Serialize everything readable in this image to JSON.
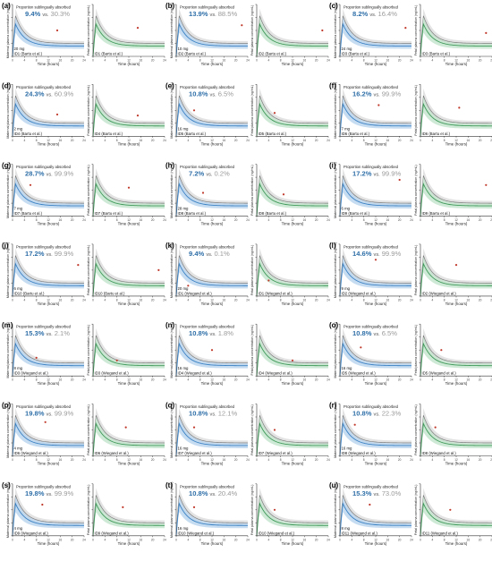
{
  "figure": {
    "colors": {
      "maternal": "#3b82c4",
      "maternal_band": "#bcd6ee",
      "fetal": "#3f9a5a",
      "fetal_band": "#c6e5cf",
      "comparison": "#7a7a7a",
      "comparison_band": "#e3e3e3",
      "observed_point": "#c0392b",
      "pct_primary": "#2f6fa8",
      "pct_secondary": "#9a9a9a"
    },
    "common": {
      "prop_label": "Proportion sublingually absorbed",
      "vs": "vs.",
      "xlabel": "Time (hours)",
      "ylabel_maternal": "Maternal plasma concentration (ng/mL)",
      "ylabel_fetal": "Fetal plasma concentration (ng/mL)"
    }
  },
  "chart_data": [
    {
      "type": "line",
      "panel": "(a)",
      "dose": "20 mg",
      "id": "ID1 (Bartu et al.)",
      "pct1": "9.4%",
      "pct2": "30.3%",
      "x_range": [
        0,
        24
      ],
      "curves": [
        "maternal",
        "fetal"
      ],
      "observed": {
        "maternal": [
          [
            15,
            0.5
          ]
        ],
        "fetal": [
          [
            15,
            0.55
          ]
        ]
      }
    },
    {
      "type": "line",
      "panel": "(b)",
      "dose": "10 mg",
      "id": "ID2 (Bartu et al.)",
      "pct1": "13.9%",
      "pct2": "88.5%",
      "x_range": [
        0,
        24
      ],
      "curves": [
        "maternal",
        "fetal"
      ],
      "observed": {
        "maternal": [
          [
            22,
            0.6
          ]
        ],
        "fetal": [
          [
            22,
            0.5
          ]
        ]
      }
    },
    {
      "type": "line",
      "panel": "(c)",
      "dose": "24 mg",
      "id": "ID3 (Bartu et al.)",
      "pct1": "8.2%",
      "pct2": "16.4%",
      "x_range": [
        0,
        24
      ],
      "curves": [
        "maternal",
        "fetal"
      ],
      "observed": {
        "maternal": [
          [
            22,
            0.55
          ]
        ],
        "fetal": [
          [
            22,
            0.45
          ]
        ]
      }
    },
    {
      "type": "line",
      "panel": "(d)",
      "dose": "2 mg",
      "id": "ID4 (Bartu et al.)",
      "pct1": "24.3%",
      "pct2": "60.9%",
      "x_range": [
        0,
        24
      ],
      "curves": [
        "maternal",
        "fetal"
      ],
      "observed": {
        "maternal": [
          [
            15,
            0.42
          ]
        ],
        "fetal": [
          [
            15,
            0.4
          ]
        ]
      }
    },
    {
      "type": "line",
      "panel": "(e)",
      "dose": "16 mg",
      "id": "ID5 (Bartu et al.)",
      "pct1": "10.8%",
      "pct2": "6.5%",
      "x_range": [
        0,
        24
      ],
      "curves": [
        "maternal",
        "fetal"
      ],
      "observed": {
        "maternal": [
          [
            6,
            0.5
          ]
        ],
        "fetal": [
          [
            6,
            0.45
          ]
        ]
      }
    },
    {
      "type": "line",
      "panel": "(f)",
      "dose": "7 mg",
      "id": "ID6 (Bartu et al.)",
      "pct1": "16.2%",
      "pct2": "99.9%",
      "x_range": [
        0,
        24
      ],
      "curves": [
        "maternal",
        "fetal"
      ],
      "observed": {
        "maternal": [
          [
            13,
            0.6
          ]
        ],
        "fetal": [
          [
            13,
            0.55
          ]
        ]
      }
    },
    {
      "type": "line",
      "panel": "(g)",
      "dose": "7 mg",
      "id": "ID7 (Bartu et al.)",
      "pct1": "28.7%",
      "pct2": "99.9%",
      "x_range": [
        0,
        24
      ],
      "curves": [
        "maternal",
        "fetal"
      ],
      "observed": {
        "maternal": [
          [
            6,
            0.6
          ]
        ],
        "fetal": [
          [
            12,
            0.55
          ]
        ]
      }
    },
    {
      "type": "line",
      "panel": "(h)",
      "dose": "28 mg",
      "id": "ID8 (Bartu et al.)",
      "pct1": "7.2%",
      "pct2": "0.2%",
      "x_range": [
        0,
        24
      ],
      "curves": [
        "maternal",
        "fetal"
      ],
      "observed": {
        "maternal": [
          [
            9,
            0.45
          ]
        ],
        "fetal": [
          [
            9,
            0.42
          ]
        ]
      }
    },
    {
      "type": "line",
      "panel": "(i)",
      "dose": "6 mg",
      "id": "ID9 (Bartu et al.)",
      "pct1": "17.2%",
      "pct2": "99.9%",
      "x_range": [
        0,
        24
      ],
      "curves": [
        "maternal",
        "fetal"
      ],
      "observed": {
        "maternal": [
          [
            20,
            0.7
          ]
        ],
        "fetal": [
          [
            22,
            0.6
          ]
        ]
      }
    },
    {
      "type": "line",
      "panel": "(j)",
      "dose": "6 mg",
      "id": "ID10 (Bartu et al.)",
      "pct1": "17.2%",
      "pct2": "99.9%",
      "x_range": [
        0,
        24
      ],
      "curves": [
        "maternal",
        "fetal"
      ],
      "observed": {
        "maternal": [
          [
            22,
            0.6
          ]
        ],
        "fetal": [
          [
            22,
            0.5
          ]
        ]
      }
    },
    {
      "type": "line",
      "panel": "(k)",
      "dose": "20 mg",
      "id": "ID1 (Wiegand et al.)",
      "pct1": "9.4%",
      "pct2": "0.1%",
      "x_range": [
        0,
        24
      ],
      "curves": [
        "maternal",
        "fetal"
      ],
      "observed": {
        "maternal": [
          [
            4,
            0.2
          ]
        ],
        "fetal": [
          [
            4,
            0.3
          ]
        ]
      }
    },
    {
      "type": "line",
      "panel": "(l)",
      "dose": "9 mg",
      "id": "ID2 (Wiegand et al.)",
      "pct1": "14.6%",
      "pct2": "99.9%",
      "x_range": [
        0,
        24
      ],
      "curves": [
        "maternal",
        "fetal"
      ],
      "observed": {
        "maternal": [
          [
            12,
            0.7
          ]
        ],
        "fetal": [
          [
            12,
            0.6
          ]
        ]
      }
    },
    {
      "type": "line",
      "panel": "(m)",
      "dose": "8 mg",
      "id": "ID3 (Wiegand et al.)",
      "pct1": "15.3%",
      "pct2": "2.1%",
      "x_range": [
        0,
        24
      ],
      "curves": [
        "maternal",
        "fetal"
      ],
      "observed": {
        "maternal": [
          [
            8,
            0.35
          ]
        ],
        "fetal": [
          [
            8,
            0.3
          ]
        ]
      }
    },
    {
      "type": "line",
      "panel": "(n)",
      "dose": "16 mg",
      "id": "ID4 (Wiegand et al.)",
      "pct1": "10.8%",
      "pct2": "1.8%",
      "x_range": [
        0,
        24
      ],
      "curves": [
        "maternal",
        "fetal"
      ],
      "observed": {
        "maternal": [
          [
            12,
            0.5
          ]
        ],
        "fetal": [
          [
            12,
            0.3
          ]
        ]
      }
    },
    {
      "type": "line",
      "panel": "(o)",
      "dose": "16 mg",
      "id": "ID5 (Wiegand et al.)",
      "pct1": "10.8%",
      "pct2": "6.5%",
      "x_range": [
        0,
        24
      ],
      "curves": [
        "maternal",
        "fetal"
      ],
      "observed": {
        "maternal": [
          [
            7,
            0.55
          ]
        ],
        "fetal": [
          [
            7,
            0.5
          ]
        ]
      }
    },
    {
      "type": "line",
      "panel": "(p)",
      "dose": "4 mg",
      "id": "ID6 (Wiegand et al.)",
      "pct1": "19.8%",
      "pct2": "99.9%",
      "x_range": [
        0,
        24
      ],
      "curves": [
        "maternal",
        "fetal"
      ],
      "observed": {
        "maternal": [
          [
            11,
            0.65
          ]
        ],
        "fetal": [
          [
            11,
            0.55
          ]
        ]
      }
    },
    {
      "type": "line",
      "panel": "(q)",
      "dose": "16 mg",
      "id": "ID7 (Wiegand et al.)",
      "pct1": "10.8%",
      "pct2": "12.1%",
      "x_range": [
        0,
        24
      ],
      "curves": [
        "maternal",
        "fetal"
      ],
      "observed": {
        "maternal": [
          [
            6,
            0.55
          ]
        ],
        "fetal": [
          [
            6,
            0.5
          ]
        ]
      }
    },
    {
      "type": "line",
      "panel": "(r)",
      "dose": "16 mg",
      "id": "ID8 (Wiegand et al.)",
      "pct1": "10.8%",
      "pct2": "22.3%",
      "x_range": [
        0,
        24
      ],
      "curves": [
        "maternal",
        "fetal"
      ],
      "observed": {
        "maternal": [
          [
            5,
            0.6
          ]
        ],
        "fetal": [
          [
            5,
            0.55
          ]
        ]
      }
    },
    {
      "type": "line",
      "panel": "(s)",
      "dose": "4 mg",
      "id": "ID9 (Wiegand et al.)",
      "pct1": "19.8%",
      "pct2": "99.9%",
      "x_range": [
        0,
        24
      ],
      "curves": [
        "maternal",
        "fetal"
      ],
      "observed": {
        "maternal": [
          [
            10,
            0.6
          ]
        ],
        "fetal": [
          [
            10,
            0.55
          ]
        ]
      }
    },
    {
      "type": "line",
      "panel": "(t)",
      "dose": "16 mg",
      "id": "ID10 (Wiegand et al.)",
      "pct1": "10.8%",
      "pct2": "20.4%",
      "x_range": [
        0,
        24
      ],
      "curves": [
        "maternal",
        "fetal"
      ],
      "observed": {
        "maternal": [
          [
            6,
            0.55
          ]
        ],
        "fetal": [
          [
            6,
            0.5
          ]
        ]
      }
    },
    {
      "type": "line",
      "panel": "(u)",
      "dose": "8 mg",
      "id": "ID11 (Wiegand et al.)",
      "pct1": "15.3%",
      "pct2": "73.0%",
      "x_range": [
        0,
        24
      ],
      "curves": [
        "maternal",
        "fetal"
      ],
      "observed": {
        "maternal": [
          [
            10,
            0.6
          ]
        ],
        "fetal": [
          [
            10,
            0.5
          ]
        ]
      }
    }
  ]
}
